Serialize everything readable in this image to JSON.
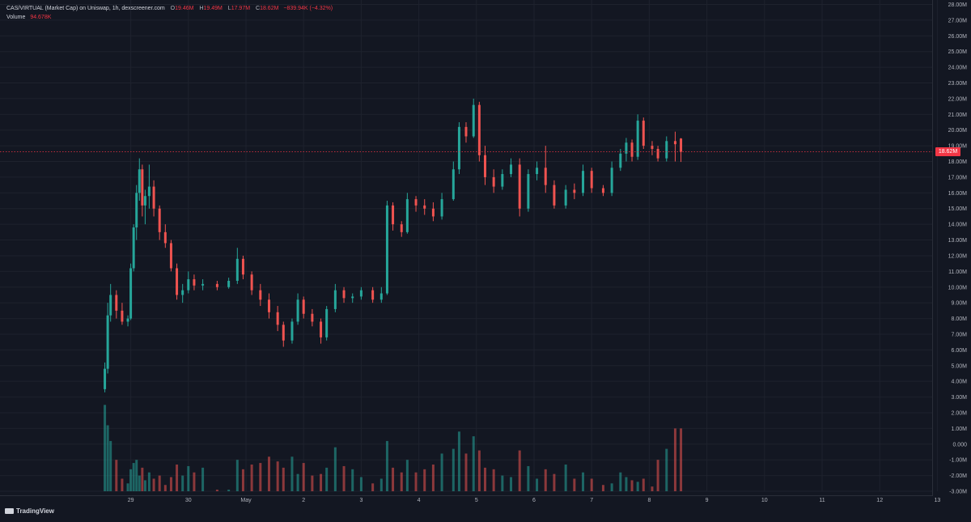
{
  "legend": {
    "symbol": "CAS/VIRTUAL (Market Cap) on Uniswap, 1h, dexscreener.com",
    "open_label": "O",
    "open": "19.46M",
    "high_label": "H",
    "high": "19.49M",
    "low_label": "L",
    "low": "17.97M",
    "close_label": "C",
    "close": "18.62M",
    "change": "−839.94K (−4.32%)",
    "volume_label": "Volume",
    "volume": "94.678K"
  },
  "last_price_label": "18.62M",
  "footer": {
    "brand": "TradingView"
  },
  "colors": {
    "background": "#131722",
    "up": "#26a69a",
    "down": "#ef5350",
    "grid": "#1e222d",
    "last_price": "#f23645"
  },
  "chart_data": {
    "type": "candlestick",
    "title": "CAS/VIRTUAL (Market Cap) on Uniswap, 1h, dexscreener.com",
    "interval": "1h",
    "y_axis_position": "right",
    "ylim": [
      -3.0,
      28.0
    ],
    "y_ticks": [
      "28.00M",
      "27.00M",
      "26.00M",
      "25.00M",
      "24.00M",
      "23.00M",
      "22.00M",
      "21.00M",
      "20.00M",
      "19.00M",
      "18.00M",
      "17.00M",
      "16.00M",
      "15.00M",
      "14.00M",
      "13.00M",
      "12.00M",
      "11.00M",
      "10.00M",
      "9.00M",
      "8.00M",
      "7.00M",
      "6.00M",
      "5.00M",
      "4.00M",
      "3.00M",
      "2.00M",
      "1.00M",
      "0.000",
      "-1.00M",
      "-2.00M",
      "-3.00M"
    ],
    "x_labels": [
      "29",
      "30",
      "May",
      "2",
      "3",
      "4",
      "5",
      "6",
      "7",
      "8",
      "9",
      "10",
      "11",
      "12",
      "13"
    ],
    "x_range": [
      28.5,
      13.2
    ],
    "last_price": 18.62,
    "series": [
      {
        "name": "Market Cap",
        "points": [
          [
            28.55,
            3.5,
            5.2,
            3.3,
            4.8
          ],
          [
            28.6,
            4.8,
            9.0,
            4.5,
            8.2
          ],
          [
            28.65,
            8.2,
            10.2,
            7.8,
            9.5
          ],
          [
            28.75,
            9.5,
            9.8,
            8.0,
            8.5
          ],
          [
            28.85,
            8.5,
            9.0,
            7.6,
            7.8
          ],
          [
            28.95,
            7.8,
            8.2,
            7.5,
            8.0
          ],
          [
            29.0,
            8.0,
            11.5,
            7.9,
            11.2
          ],
          [
            29.05,
            11.2,
            14.0,
            11.0,
            13.8
          ],
          [
            29.1,
            13.8,
            16.5,
            13.0,
            16.0
          ],
          [
            29.15,
            16.0,
            18.2,
            15.5,
            17.5
          ],
          [
            29.2,
            17.5,
            17.8,
            14.5,
            15.2
          ],
          [
            29.25,
            15.2,
            16.2,
            14.0,
            15.8
          ],
          [
            29.32,
            15.8,
            17.8,
            15.0,
            16.4
          ],
          [
            29.4,
            16.4,
            16.8,
            14.5,
            15.0
          ],
          [
            29.5,
            15.0,
            15.2,
            13.0,
            13.5
          ],
          [
            29.6,
            13.5,
            14.0,
            12.5,
            12.8
          ],
          [
            29.7,
            12.8,
            13.0,
            11.0,
            11.2
          ],
          [
            29.8,
            11.2,
            11.5,
            9.2,
            9.5
          ],
          [
            29.9,
            9.5,
            10.2,
            9.0,
            9.8
          ],
          [
            30.0,
            9.8,
            11.0,
            9.6,
            10.5
          ],
          [
            30.1,
            10.5,
            10.8,
            9.8,
            10.1
          ],
          [
            30.25,
            10.1,
            10.5,
            9.8,
            10.2
          ],
          [
            30.5,
            10.2,
            10.4,
            9.8,
            10.0
          ],
          [
            30.7,
            10.0,
            10.6,
            9.9,
            10.4
          ],
          [
            30.85,
            10.4,
            12.5,
            10.2,
            11.8
          ],
          [
            30.95,
            11.8,
            12.0,
            10.5,
            10.8
          ],
          [
            31.1,
            10.8,
            11.0,
            9.5,
            9.8
          ],
          [
            31.25,
            9.8,
            10.2,
            8.8,
            9.2
          ],
          [
            31.4,
            9.2,
            9.6,
            8.0,
            8.4
          ],
          [
            31.55,
            8.4,
            8.8,
            7.2,
            7.6
          ],
          [
            31.65,
            7.6,
            7.8,
            6.2,
            6.6
          ],
          [
            31.8,
            6.6,
            8.0,
            6.4,
            7.8
          ],
          [
            31.9,
            7.8,
            9.6,
            7.6,
            9.2
          ],
          [
            32.0,
            9.2,
            9.4,
            8.0,
            8.3
          ],
          [
            32.15,
            8.3,
            8.6,
            7.5,
            7.8
          ],
          [
            32.3,
            7.8,
            8.0,
            6.4,
            6.8
          ],
          [
            32.4,
            6.8,
            8.8,
            6.6,
            8.6
          ],
          [
            32.55,
            8.6,
            10.2,
            8.4,
            9.8
          ],
          [
            32.7,
            9.8,
            10.0,
            9.0,
            9.3
          ],
          [
            32.85,
            9.3,
            9.6,
            9.0,
            9.4
          ],
          [
            33.0,
            9.4,
            10.0,
            9.2,
            9.8
          ],
          [
            33.2,
            9.8,
            10.0,
            9.0,
            9.2
          ],
          [
            33.35,
            9.2,
            10.0,
            9.0,
            9.6
          ],
          [
            33.45,
            9.6,
            15.5,
            9.5,
            15.2
          ],
          [
            33.55,
            15.2,
            15.4,
            13.6,
            14.0
          ],
          [
            33.7,
            14.0,
            14.2,
            13.2,
            13.5
          ],
          [
            33.8,
            13.5,
            16.0,
            13.4,
            15.6
          ],
          [
            33.95,
            15.6,
            15.8,
            14.8,
            15.2
          ],
          [
            34.1,
            15.2,
            15.6,
            14.6,
            15.0
          ],
          [
            34.25,
            15.0,
            15.4,
            14.2,
            14.5
          ],
          [
            34.4,
            14.5,
            16.0,
            14.3,
            15.6
          ],
          [
            34.6,
            15.6,
            18.0,
            15.5,
            17.5
          ],
          [
            34.7,
            17.5,
            20.5,
            17.2,
            20.2
          ],
          [
            34.82,
            20.2,
            20.5,
            19.2,
            19.6
          ],
          [
            34.95,
            19.6,
            22.0,
            19.5,
            21.6
          ],
          [
            35.05,
            21.6,
            21.8,
            18.0,
            18.4
          ],
          [
            35.15,
            18.4,
            19.0,
            16.5,
            17.0
          ],
          [
            35.3,
            17.0,
            17.5,
            16.0,
            16.4
          ],
          [
            35.45,
            16.4,
            17.5,
            16.2,
            17.2
          ],
          [
            35.6,
            17.2,
            18.2,
            17.0,
            17.8
          ],
          [
            35.75,
            17.8,
            18.2,
            14.5,
            15.0
          ],
          [
            35.9,
            15.0,
            17.5,
            14.8,
            17.2
          ],
          [
            36.05,
            17.2,
            18.0,
            16.8,
            17.6
          ],
          [
            36.2,
            17.6,
            19.0,
            16.0,
            16.5
          ],
          [
            36.35,
            16.5,
            16.8,
            15.0,
            15.2
          ],
          [
            36.55,
            15.2,
            16.5,
            15.0,
            16.2
          ],
          [
            36.7,
            16.2,
            16.6,
            15.6,
            16.0
          ],
          [
            36.85,
            16.0,
            17.8,
            15.8,
            17.4
          ],
          [
            37.0,
            17.4,
            17.6,
            16.0,
            16.3
          ],
          [
            37.2,
            16.3,
            16.5,
            15.8,
            16.0
          ],
          [
            37.35,
            16.0,
            18.0,
            15.8,
            17.6
          ],
          [
            37.5,
            17.6,
            18.8,
            17.4,
            18.5
          ],
          [
            37.6,
            18.5,
            19.5,
            18.0,
            19.2
          ],
          [
            37.7,
            19.2,
            19.4,
            18.0,
            18.3
          ],
          [
            37.8,
            18.3,
            21.0,
            18.1,
            20.6
          ],
          [
            37.9,
            20.6,
            20.8,
            18.8,
            19.0
          ],
          [
            38.05,
            19.0,
            19.3,
            18.4,
            18.8
          ],
          [
            38.15,
            18.8,
            19.0,
            18.0,
            18.2
          ],
          [
            38.3,
            18.2,
            19.6,
            18.0,
            19.3
          ],
          [
            38.45,
            19.3,
            19.9,
            18.0,
            19.1
          ],
          [
            38.55,
            19.46,
            19.49,
            17.97,
            18.62
          ]
        ]
      },
      {
        "name": "Volume",
        "points": [
          [
            28.55,
            2.5
          ],
          [
            28.6,
            1.2
          ],
          [
            28.65,
            0.2
          ],
          [
            28.75,
            -1.0
          ],
          [
            28.85,
            -2.2
          ],
          [
            28.95,
            -2.5
          ],
          [
            29.0,
            -1.6
          ],
          [
            29.05,
            -1.2
          ],
          [
            29.1,
            -1.0
          ],
          [
            29.15,
            -2.0
          ],
          [
            29.2,
            -1.5
          ],
          [
            29.25,
            -2.3
          ],
          [
            29.32,
            -1.8
          ],
          [
            29.4,
            -2.2
          ],
          [
            29.5,
            -2.0
          ],
          [
            29.6,
            -2.6
          ],
          [
            29.7,
            -2.1
          ],
          [
            29.8,
            -1.3
          ],
          [
            29.9,
            -2.0
          ],
          [
            30.0,
            -1.4
          ],
          [
            30.1,
            -1.8
          ],
          [
            30.25,
            -1.5
          ],
          [
            30.5,
            -2.9
          ],
          [
            30.7,
            -2.9
          ],
          [
            30.85,
            -1.0
          ],
          [
            30.95,
            -1.6
          ],
          [
            31.1,
            -1.3
          ],
          [
            31.25,
            -1.2
          ],
          [
            31.4,
            -0.8
          ],
          [
            31.55,
            -1.1
          ],
          [
            31.65,
            -1.5
          ],
          [
            31.8,
            -0.8
          ],
          [
            31.9,
            -1.9
          ],
          [
            32.0,
            -1.2
          ],
          [
            32.15,
            -2.0
          ],
          [
            32.3,
            -1.9
          ],
          [
            32.4,
            -1.5
          ],
          [
            32.55,
            -0.2
          ],
          [
            32.7,
            -1.4
          ],
          [
            32.85,
            -1.6
          ],
          [
            33.0,
            -2.1
          ],
          [
            33.2,
            -2.5
          ],
          [
            33.35,
            -2.2
          ],
          [
            33.45,
            0.2
          ],
          [
            33.55,
            -1.5
          ],
          [
            33.7,
            -1.8
          ],
          [
            33.8,
            -1.0
          ],
          [
            33.95,
            -1.8
          ],
          [
            34.1,
            -1.6
          ],
          [
            34.25,
            -1.3
          ],
          [
            34.4,
            -0.6
          ],
          [
            34.6,
            -0.3
          ],
          [
            34.7,
            0.8
          ],
          [
            34.82,
            -0.6
          ],
          [
            34.95,
            0.5
          ],
          [
            35.05,
            -0.4
          ],
          [
            35.15,
            -1.5
          ],
          [
            35.3,
            -1.6
          ],
          [
            35.45,
            -2.0
          ],
          [
            35.6,
            -2.1
          ],
          [
            35.75,
            -0.4
          ],
          [
            35.9,
            -1.4
          ],
          [
            36.05,
            -2.2
          ],
          [
            36.2,
            -1.6
          ],
          [
            36.35,
            -1.9
          ],
          [
            36.55,
            -1.3
          ],
          [
            36.7,
            -2.2
          ],
          [
            36.85,
            -1.8
          ],
          [
            37.0,
            -2.2
          ],
          [
            37.2,
            -2.6
          ],
          [
            37.35,
            -2.5
          ],
          [
            37.5,
            -1.8
          ],
          [
            37.6,
            -2.1
          ],
          [
            37.7,
            -2.3
          ],
          [
            37.8,
            -2.4
          ],
          [
            37.9,
            -2.2
          ],
          [
            38.05,
            -2.7
          ],
          [
            38.15,
            -1.0
          ],
          [
            38.3,
            -0.3
          ],
          [
            38.45,
            1.0
          ],
          [
            38.55,
            1.0
          ]
        ]
      }
    ]
  }
}
